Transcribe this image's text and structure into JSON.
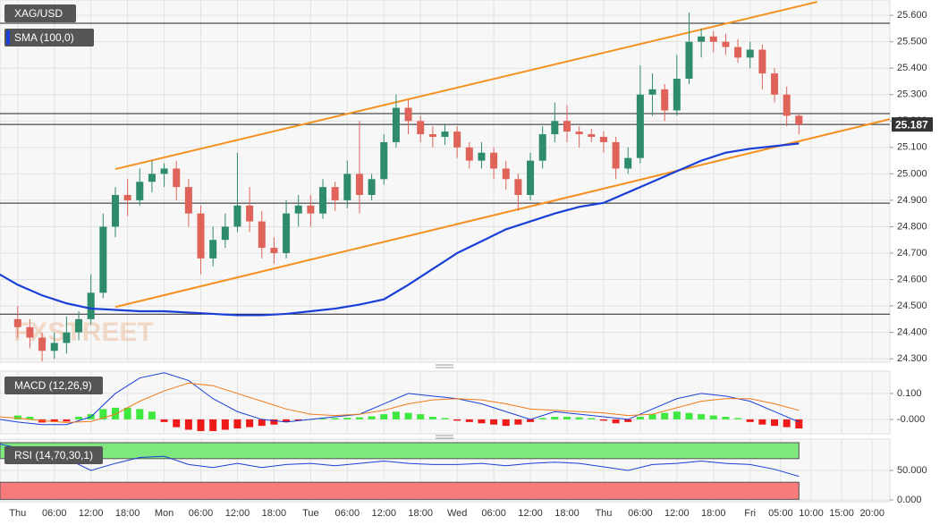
{
  "chart_data": [
    {
      "type": "candlestick",
      "title": "XAG/USD",
      "watermark": "FXSTREET",
      "up_color": "#2e8b6b",
      "down_color": "#e0635a",
      "grid": true,
      "xlim": [
        -2.9,
        142.9
      ],
      "ylim": [
        24.287,
        25.658
      ],
      "xticks": [
        {
          "value": 0,
          "label": "Thu"
        },
        {
          "value": 6,
          "label": "06:00"
        },
        {
          "value": 12,
          "label": "12:00"
        },
        {
          "value": 18,
          "label": "18:00"
        },
        {
          "value": 24,
          "label": "Mon"
        },
        {
          "value": 30,
          "label": "06:00"
        },
        {
          "value": 36,
          "label": "12:00"
        },
        {
          "value": 42,
          "label": "18:00"
        },
        {
          "value": 48,
          "label": "Tue"
        },
        {
          "value": 54,
          "label": "06:00"
        },
        {
          "value": 60,
          "label": "12:00"
        },
        {
          "value": 66,
          "label": "18:00"
        },
        {
          "value": 72,
          "label": "Wed"
        },
        {
          "value": 78,
          "label": "06:00"
        },
        {
          "value": 84,
          "label": "12:00"
        },
        {
          "value": 90,
          "label": "18:00"
        },
        {
          "value": 96,
          "label": "Thu"
        },
        {
          "value": 102,
          "label": "06:00"
        },
        {
          "value": 108,
          "label": "12:00"
        },
        {
          "value": 114,
          "label": "18:00"
        },
        {
          "value": 120,
          "label": "Fri"
        },
        {
          "value": 125,
          "label": "05:00"
        },
        {
          "value": 130,
          "label": "10:00"
        },
        {
          "value": 135,
          "label": "15:00"
        },
        {
          "value": 140,
          "label": "20:00"
        }
      ],
      "yticks": [
        {
          "value": 24.3,
          "label": "24.300"
        },
        {
          "value": 24.4,
          "label": "24.400"
        },
        {
          "value": 24.5,
          "label": "24.500"
        },
        {
          "value": 24.6,
          "label": "24.600"
        },
        {
          "value": 24.7,
          "label": "24.700"
        },
        {
          "value": 24.8,
          "label": "24.800"
        },
        {
          "value": 24.9,
          "label": "24.900"
        },
        {
          "value": 25.0,
          "label": "25.000"
        },
        {
          "value": 25.1,
          "label": "25.100"
        },
        {
          "value": 25.2,
          "label": "25.200"
        },
        {
          "value": 25.3,
          "label": "25.300"
        },
        {
          "value": 25.4,
          "label": "25.400"
        },
        {
          "value": 25.5,
          "label": "25.500"
        },
        {
          "value": 25.6,
          "label": "25.600"
        }
      ],
      "x": [
        0,
        2,
        4,
        6,
        8,
        10,
        12,
        14,
        16,
        18,
        20,
        22,
        24,
        26,
        28,
        30,
        32,
        34,
        36,
        38,
        40,
        42,
        44,
        46,
        48,
        50,
        52,
        54,
        56,
        58,
        60,
        62,
        64,
        66,
        68,
        70,
        72,
        74,
        76,
        78,
        80,
        82,
        84,
        86,
        88,
        90,
        92,
        94,
        96,
        98,
        100,
        102,
        104,
        106,
        108,
        110,
        112,
        114,
        116,
        118,
        120,
        122,
        124,
        126,
        128
      ],
      "open": [
        24.45,
        24.42,
        24.38,
        24.33,
        24.36,
        24.4,
        24.45,
        24.55,
        24.8,
        24.92,
        24.9,
        24.97,
        25.0,
        25.02,
        24.95,
        24.85,
        24.68,
        24.75,
        24.8,
        24.88,
        24.82,
        24.72,
        24.7,
        24.85,
        24.88,
        24.85,
        24.95,
        24.9,
        25.0,
        24.92,
        24.98,
        25.12,
        25.25,
        25.2,
        25.15,
        25.14,
        25.16,
        25.1,
        25.05,
        25.08,
        25.02,
        24.98,
        24.92,
        25.05,
        25.15,
        25.2,
        25.16,
        25.15,
        25.14,
        25.12,
        25.02,
        25.06,
        25.3,
        25.32,
        25.24,
        25.36,
        25.5,
        25.52,
        25.5,
        25.48,
        25.44,
        25.47,
        25.38,
        25.3,
        25.22
      ],
      "high": [
        24.5,
        24.45,
        24.4,
        24.4,
        24.46,
        24.48,
        24.62,
        24.85,
        24.95,
        24.98,
        25.02,
        25.05,
        25.04,
        25.05,
        24.98,
        24.88,
        24.8,
        24.85,
        25.08,
        24.95,
        24.86,
        24.76,
        24.9,
        24.92,
        24.92,
        24.98,
        24.97,
        25.05,
        25.2,
        25.0,
        25.15,
        25.3,
        25.28,
        25.22,
        25.18,
        25.19,
        25.18,
        25.12,
        25.12,
        25.1,
        25.05,
        25.0,
        25.08,
        25.18,
        25.27,
        25.26,
        25.18,
        25.17,
        25.16,
        25.14,
        25.1,
        25.41,
        25.38,
        25.34,
        25.45,
        25.61,
        25.55,
        25.54,
        25.53,
        25.51,
        25.5,
        25.49,
        25.4,
        25.33,
        25.23
      ],
      "low": [
        24.38,
        24.34,
        24.29,
        24.3,
        24.32,
        24.37,
        24.43,
        24.53,
        24.76,
        24.84,
        24.88,
        24.93,
        24.95,
        24.9,
        24.8,
        24.62,
        24.65,
        24.72,
        24.78,
        24.78,
        24.68,
        24.66,
        24.68,
        24.8,
        24.8,
        24.83,
        24.86,
        24.87,
        24.85,
        24.9,
        24.96,
        25.1,
        25.15,
        25.12,
        25.1,
        25.11,
        25.06,
        25.02,
        25.02,
        24.98,
        24.94,
        24.86,
        24.9,
        25.02,
        25.12,
        25.12,
        25.1,
        25.12,
        25.08,
        24.98,
        25.0,
        25.04,
        25.22,
        25.2,
        25.22,
        25.34,
        25.44,
        25.46,
        25.45,
        25.42,
        25.4,
        25.32,
        25.27,
        25.18,
        25.15
      ],
      "close": [
        24.42,
        24.38,
        24.33,
        24.36,
        24.4,
        24.45,
        24.55,
        24.8,
        24.92,
        24.9,
        24.97,
        25.0,
        25.02,
        24.95,
        24.85,
        24.68,
        24.75,
        24.8,
        24.88,
        24.82,
        24.72,
        24.7,
        24.85,
        24.88,
        24.85,
        24.95,
        24.9,
        25.0,
        24.92,
        24.98,
        25.12,
        25.25,
        25.2,
        25.15,
        25.14,
        25.16,
        25.1,
        25.05,
        25.08,
        25.02,
        24.98,
        24.92,
        25.05,
        25.15,
        25.2,
        25.16,
        25.15,
        25.14,
        25.12,
        25.02,
        25.06,
        25.3,
        25.32,
        25.24,
        25.36,
        25.5,
        25.52,
        25.5,
        25.48,
        25.44,
        25.47,
        25.38,
        25.3,
        25.22,
        25.187
      ],
      "series": [
        {
          "name": "SMA (100,0)",
          "color": "#1a3fd6",
          "x": [
            -3,
            0,
            4,
            8,
            12,
            16,
            20,
            24,
            28,
            32,
            36,
            40,
            44,
            48,
            52,
            56,
            60,
            64,
            68,
            72,
            76,
            80,
            84,
            88,
            92,
            96,
            100,
            104,
            108,
            112,
            116,
            120,
            124,
            128
          ],
          "values": [
            24.62,
            24.58,
            24.54,
            24.51,
            24.49,
            24.485,
            24.48,
            24.48,
            24.475,
            24.47,
            24.465,
            24.465,
            24.47,
            24.48,
            24.49,
            24.505,
            24.525,
            24.58,
            24.64,
            24.7,
            24.745,
            24.79,
            24.82,
            24.85,
            24.875,
            24.89,
            24.93,
            24.97,
            25.01,
            25.05,
            25.08,
            25.095,
            25.105,
            25.115
          ]
        }
      ],
      "trend_lines": [
        {
          "color": "#f5901e",
          "x": [
            16,
            131
          ],
          "values": [
            25.018,
            25.651
          ]
        },
        {
          "color": "#f5901e",
          "x": [
            16,
            142.9
          ],
          "values": [
            24.496,
            25.207
          ]
        }
      ],
      "h_lines": [
        25.57,
        25.228,
        25.187,
        24.889,
        24.469
      ],
      "last_price": 25.187
    },
    {
      "type": "macd",
      "title": "MACD (12,26,9)",
      "up_color": "#3ee83e",
      "down_color": "#ee1a1a",
      "xlim": [
        -2.9,
        142.9
      ],
      "ylim": [
        -0.052,
        0.186
      ],
      "yticks": [
        {
          "value": 0.1,
          "label": "0.100"
        },
        {
          "value": 0,
          "label": "-0.000"
        }
      ],
      "hist_x": [
        0,
        2,
        4,
        6,
        8,
        10,
        12,
        14,
        16,
        18,
        20,
        22,
        24,
        26,
        28,
        30,
        32,
        34,
        36,
        38,
        40,
        42,
        44,
        46,
        48,
        50,
        52,
        54,
        56,
        58,
        60,
        62,
        64,
        66,
        68,
        70,
        72,
        74,
        76,
        78,
        80,
        82,
        84,
        86,
        88,
        90,
        92,
        94,
        96,
        98,
        100,
        102,
        104,
        106,
        108,
        110,
        112,
        114,
        116,
        118,
        120,
        122,
        124,
        126,
        128
      ],
      "histogram": [
        0.015,
        0.01,
        -0.012,
        -0.01,
        -0.008,
        0.01,
        0.02,
        0.04,
        0.045,
        0.045,
        0.04,
        0.03,
        -0.01,
        -0.03,
        -0.04,
        -0.045,
        -0.045,
        -0.04,
        -0.035,
        -0.03,
        -0.025,
        -0.02,
        -0.01,
        -0.005,
        0.0,
        0.003,
        0.005,
        0.006,
        0.008,
        0.012,
        0.02,
        0.03,
        0.025,
        0.02,
        0.01,
        0.005,
        -0.005,
        -0.01,
        -0.015,
        -0.02,
        -0.025,
        -0.02,
        -0.01,
        0.005,
        0.01,
        0.01,
        0.008,
        0.005,
        -0.005,
        -0.015,
        -0.01,
        0.01,
        0.02,
        0.025,
        0.03,
        0.025,
        0.02,
        0.015,
        0.01,
        0.005,
        -0.01,
        -0.02,
        -0.025,
        -0.03,
        -0.035
      ],
      "series": [
        {
          "color": "#1a3fd6",
          "x": [
            -3,
            0,
            4,
            8,
            12,
            16,
            20,
            24,
            28,
            32,
            36,
            40,
            44,
            48,
            52,
            56,
            60,
            64,
            68,
            72,
            76,
            80,
            84,
            88,
            92,
            96,
            100,
            104,
            108,
            112,
            116,
            120,
            124,
            128
          ],
          "values": [
            0.0,
            -0.01,
            -0.02,
            -0.02,
            0.01,
            0.1,
            0.16,
            0.18,
            0.15,
            0.08,
            0.03,
            0.0,
            -0.01,
            0.0,
            0.01,
            0.02,
            0.06,
            0.1,
            0.09,
            0.08,
            0.06,
            0.03,
            0.0,
            0.03,
            0.02,
            0.01,
            0.0,
            0.04,
            0.08,
            0.1,
            0.09,
            0.07,
            0.03,
            -0.01
          ]
        },
        {
          "color": "#f07b1a",
          "x": [
            -3,
            0,
            4,
            8,
            12,
            16,
            20,
            24,
            28,
            32,
            36,
            40,
            44,
            48,
            52,
            56,
            60,
            64,
            68,
            72,
            76,
            80,
            84,
            88,
            92,
            96,
            100,
            104,
            108,
            112,
            116,
            120,
            124,
            128
          ],
          "values": [
            0.01,
            0.005,
            -0.005,
            -0.012,
            -0.008,
            0.02,
            0.07,
            0.11,
            0.14,
            0.13,
            0.1,
            0.07,
            0.04,
            0.02,
            0.015,
            0.02,
            0.035,
            0.06,
            0.075,
            0.08,
            0.075,
            0.06,
            0.04,
            0.035,
            0.03,
            0.025,
            0.015,
            0.02,
            0.045,
            0.07,
            0.08,
            0.08,
            0.06,
            0.035
          ]
        }
      ]
    },
    {
      "type": "rsi",
      "title": "RSI (14,70,30,1)",
      "xlim": [
        -2.9,
        142.9
      ],
      "ylim": [
        0,
        100
      ],
      "yticks": [
        {
          "value": 50,
          "label": "50.000"
        },
        {
          "value": 0,
          "label": "0.000"
        }
      ],
      "bands": [
        {
          "from": 70,
          "to": 97,
          "color": "#7ee87e"
        },
        {
          "from": 1,
          "to": 30,
          "color": "#f77b7b"
        }
      ],
      "series": [
        {
          "color": "#1a3fd6",
          "x": [
            -3,
            0,
            4,
            8,
            12,
            16,
            20,
            24,
            28,
            32,
            36,
            40,
            44,
            48,
            52,
            56,
            60,
            64,
            68,
            72,
            76,
            80,
            84,
            88,
            92,
            96,
            100,
            104,
            108,
            112,
            116,
            120,
            124,
            128
          ],
          "values": [
            95,
            88,
            80,
            70,
            50,
            62,
            72,
            74,
            60,
            55,
            62,
            55,
            60,
            62,
            58,
            62,
            66,
            62,
            60,
            60,
            62,
            58,
            62,
            64,
            62,
            56,
            50,
            60,
            62,
            66,
            62,
            60,
            52,
            40
          ]
        }
      ]
    }
  ]
}
